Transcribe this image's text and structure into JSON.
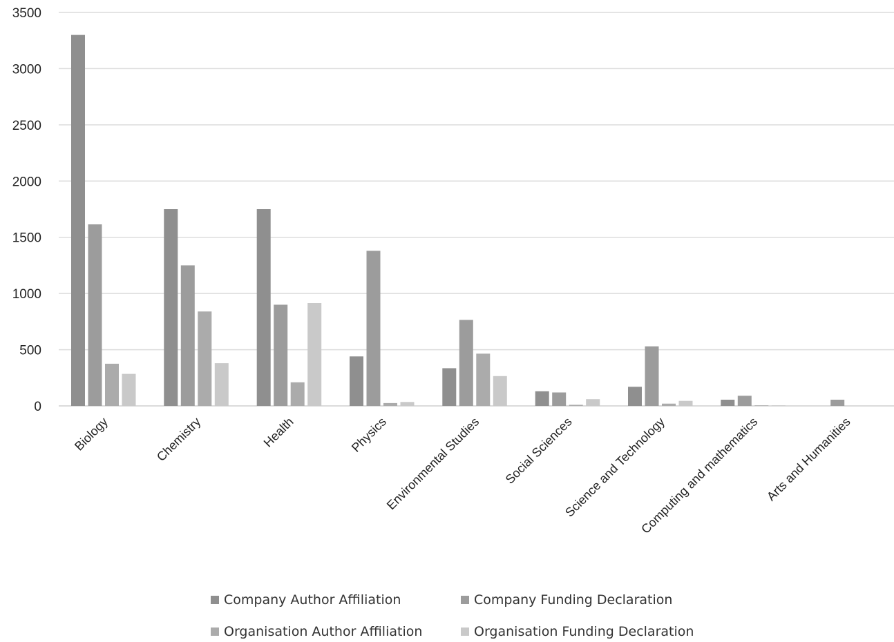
{
  "chart_data": {
    "type": "bar",
    "title": "",
    "xlabel": "",
    "ylabel": "",
    "ylim": [
      0,
      3500
    ],
    "yticks": [
      0,
      500,
      1000,
      1500,
      2000,
      2500,
      3000,
      3500
    ],
    "grid": true,
    "legend_position": "bottom",
    "categories": [
      "Biology",
      "Chemistry",
      "Health",
      "Physics",
      "Environmental Studies",
      "Social Sciences",
      "Science and Technology",
      "Computing and mathematics",
      "Arts and Humanities"
    ],
    "series": [
      {
        "name": "Company Author Affiliation",
        "color": "#8f8f8f",
        "values": [
          3300,
          1750,
          1750,
          440,
          335,
          130,
          170,
          55,
          0
        ]
      },
      {
        "name": "Company Funding Declaration",
        "color": "#9c9c9c",
        "values": [
          1615,
          1250,
          900,
          1380,
          765,
          120,
          530,
          90,
          55
        ]
      },
      {
        "name": "Organisation Author Affiliation",
        "color": "#ababab",
        "values": [
          375,
          840,
          210,
          25,
          465,
          10,
          20,
          5,
          0
        ]
      },
      {
        "name": "Organisation Funding Declaration",
        "color": "#c9c9c9",
        "values": [
          285,
          380,
          915,
          35,
          265,
          60,
          45,
          5,
          0
        ]
      }
    ]
  }
}
